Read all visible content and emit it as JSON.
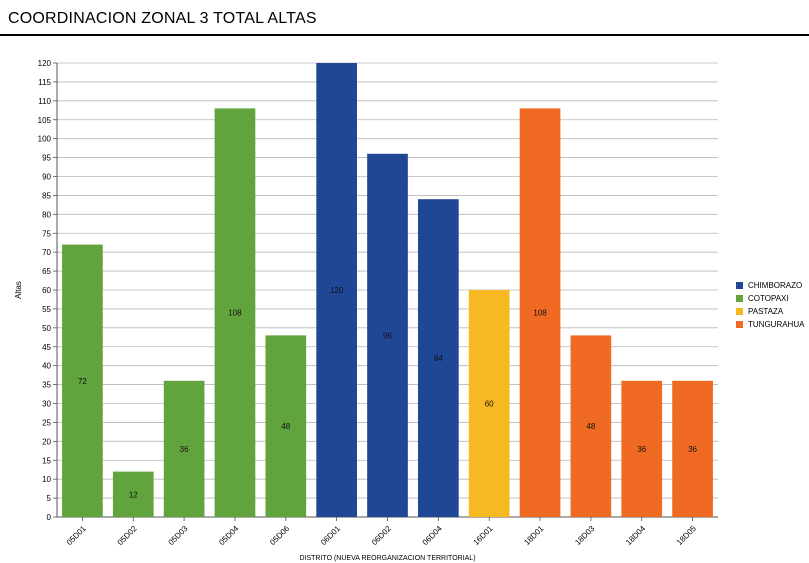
{
  "header": {
    "title": "COORDINACION ZONAL 3 TOTAL ALTAS"
  },
  "chart_data": {
    "type": "bar",
    "title": "COORDINACION ZONAL 3 TOTAL ALTAS",
    "xlabel": "DISTRITO (NUEVA REORGANIZACION TERRITORIAL)",
    "ylabel": "Altas",
    "ylim": [
      0,
      120
    ],
    "ytick_step": 5,
    "grid": true,
    "legend_position": "right",
    "categories": [
      "05D01",
      "05D02",
      "05D03",
      "05D04",
      "05D06",
      "06D01",
      "06D02",
      "06D04",
      "16D01",
      "18D01",
      "18D03",
      "18D04",
      "18D05"
    ],
    "values": [
      72,
      12,
      36,
      108,
      48,
      120,
      96,
      84,
      60,
      108,
      48,
      36,
      36
    ],
    "bar_series": [
      "COTOPAXI",
      "COTOPAXI",
      "COTOPAXI",
      "COTOPAXI",
      "COTOPAXI",
      "CHIMBORAZO",
      "CHIMBORAZO",
      "CHIMBORAZO",
      "PASTAZA",
      "TUNGURAHUA",
      "TUNGURAHUA",
      "TUNGURAHUA",
      "TUNGURAHUA"
    ],
    "series": [
      {
        "name": "CHIMBORAZO",
        "color": "#1f4796"
      },
      {
        "name": "COTOPAXI",
        "color": "#61a33d"
      },
      {
        "name": "PASTAZA",
        "color": "#f6b922"
      },
      {
        "name": "TUNGURAHUA",
        "color": "#f06a24"
      }
    ]
  }
}
